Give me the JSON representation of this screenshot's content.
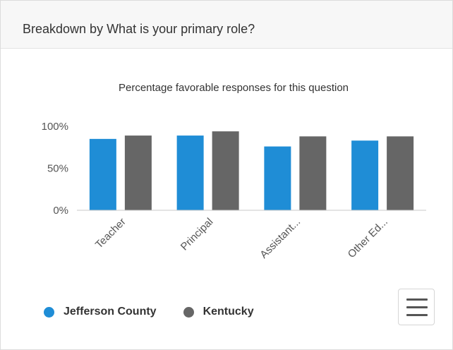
{
  "card": {
    "title": "Breakdown by What is your primary role?"
  },
  "menu": {
    "icon": "hamburger-menu-icon"
  },
  "chart_data": {
    "type": "bar",
    "title": "Percentage favorable responses for this question",
    "xlabel": "",
    "ylabel": "",
    "categories": [
      "Teacher",
      "Principal",
      "Assistant...",
      "Other Ed..."
    ],
    "series": [
      {
        "name": "Jefferson County",
        "color": "#1f8dd6",
        "values": [
          85,
          89,
          76,
          83
        ]
      },
      {
        "name": "Kentucky",
        "color": "#666666",
        "values": [
          89,
          94,
          88,
          88
        ]
      }
    ],
    "ylim": [
      0,
      100
    ],
    "yticks": [
      0,
      50,
      100
    ],
    "ytick_labels": [
      "0%",
      "50%",
      "100%"
    ],
    "grid": false,
    "legend_position": "bottom-left"
  }
}
